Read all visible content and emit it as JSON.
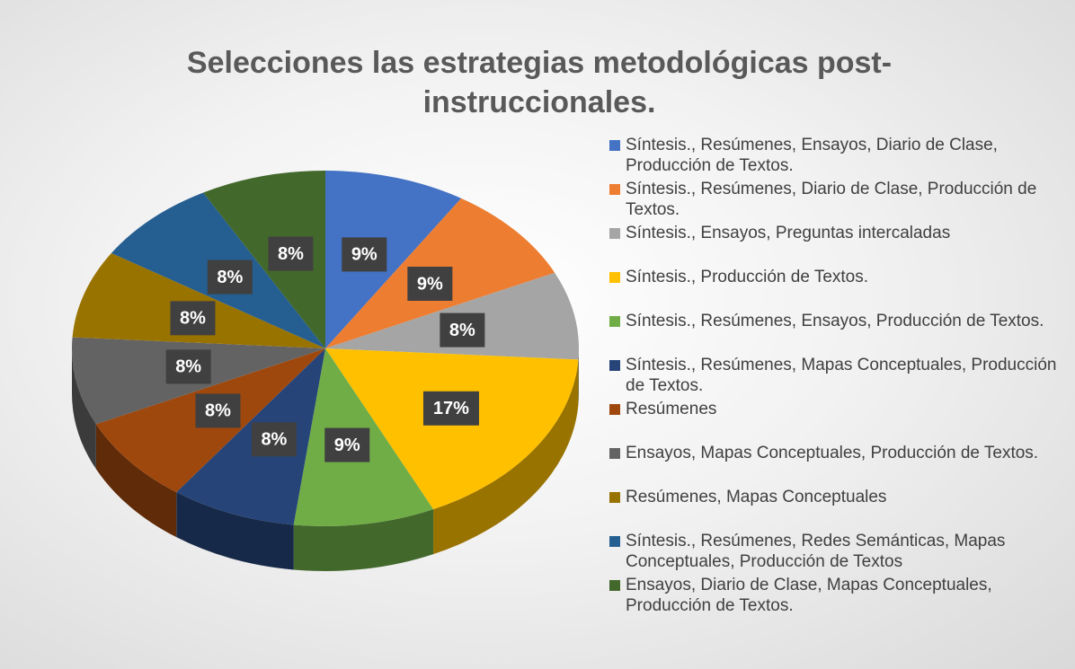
{
  "chart_data": {
    "type": "pie",
    "title": "Selecciones las estrategias metodológicas post-instruccionales.",
    "categories": [
      "Síntesis., Resúmenes, Ensayos, Diario de Clase, Producción de Textos.",
      "Síntesis., Resúmenes, Diario de Clase, Producción de Textos.",
      "Síntesis., Ensayos, Preguntas intercaladas",
      "Síntesis., Producción de Textos.",
      "Síntesis., Resúmenes, Ensayos, Producción de Textos.",
      "Síntesis., Resúmenes, Mapas Conceptuales, Producción de Textos.",
      "Resúmenes",
      "Ensayos, Mapas Conceptuales, Producción de Textos.",
      "Resúmenes, Mapas Conceptuales",
      "Síntesis., Resúmenes, Redes Semánticas, Mapas Conceptuales, Producción de Textos",
      "Ensayos, Diario de Clase, Mapas Conceptuales, Producción de Textos."
    ],
    "values": [
      9,
      9,
      8,
      17,
      9,
      8,
      8,
      8,
      8,
      8,
      8
    ],
    "value_labels": [
      "9%",
      "9%",
      "8%",
      "17%",
      "9%",
      "8%",
      "8%",
      "8%",
      "8%",
      "8%",
      "8%"
    ],
    "colors": [
      "#4472c4",
      "#ed7d31",
      "#a5a5a5",
      "#ffc000",
      "#70ad47",
      "#264478",
      "#9e480e",
      "#636363",
      "#997300",
      "#255e91",
      "#43682b"
    ],
    "legend": "right"
  }
}
